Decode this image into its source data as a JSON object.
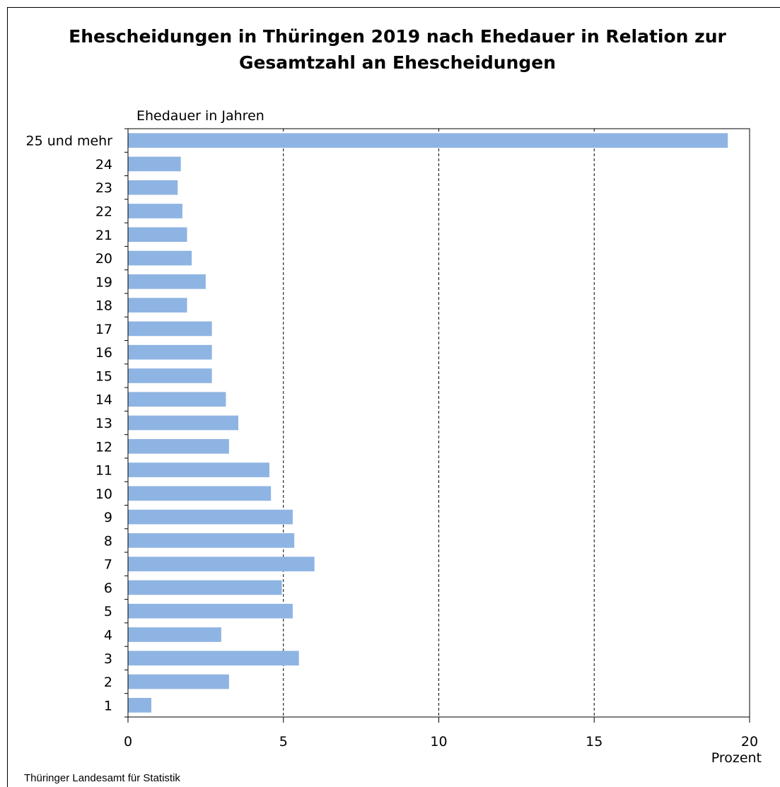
{
  "chart_data": {
    "type": "bar",
    "orientation": "horizontal",
    "title": "Ehescheidungen in Thüringen 2019 nach Ehedauer in Relation zur Gesamtzahl an Ehescheidungen",
    "title_lines": [
      "Ehescheidungen in Thüringen 2019 nach Ehedauer in Relation zur",
      "Gesamtzahl an Ehescheidungen"
    ],
    "ylabel": "Ehedauer in Jahren",
    "xlabel": "Prozent",
    "categories": [
      "25 und mehr",
      "24",
      "23",
      "22",
      "21",
      "20",
      "19",
      "18",
      "17",
      "16",
      "15",
      "14",
      "13",
      "12",
      "11",
      "10",
      "9",
      "8",
      "7",
      "6",
      "5",
      "4",
      "3",
      "2",
      "1"
    ],
    "values": [
      19.3,
      1.7,
      1.6,
      1.75,
      1.9,
      2.05,
      2.5,
      1.9,
      2.7,
      2.7,
      2.7,
      3.15,
      3.55,
      3.25,
      4.55,
      4.6,
      5.3,
      5.35,
      6.0,
      4.95,
      5.3,
      3.0,
      5.5,
      3.25,
      0.75
    ],
    "xlim": [
      0,
      20
    ],
    "xticks": [
      0,
      5,
      10,
      15,
      20
    ],
    "grid": "vertical dashed",
    "bar_color": "#8EB4E3",
    "legend": "none"
  },
  "source": "Thüringer Landesamt für Statistik"
}
